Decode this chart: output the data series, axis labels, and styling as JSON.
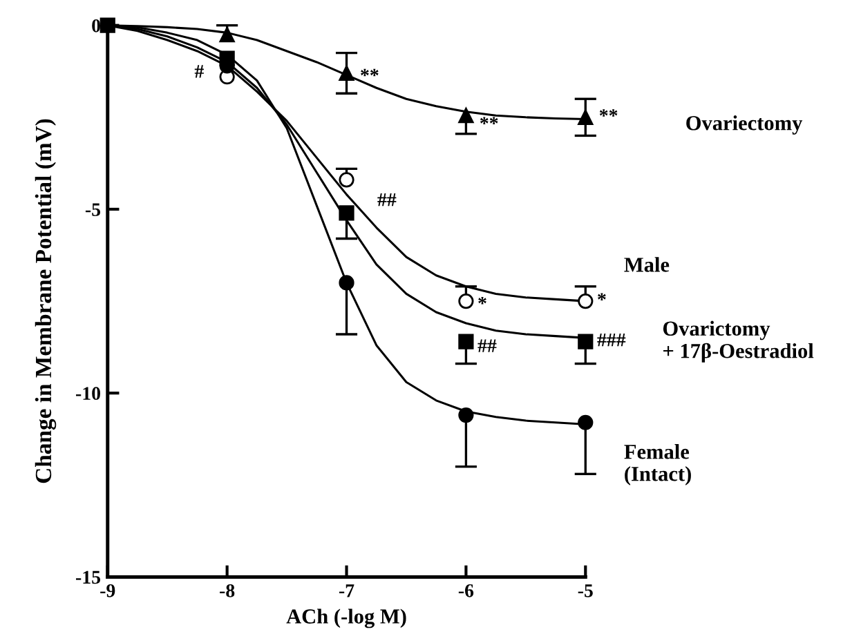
{
  "chart_data": {
    "type": "line",
    "xlabel": "ACh (-log M)",
    "ylabel": "Change in Membrane Potential (mV)",
    "xlim": [
      -9,
      -5
    ],
    "xticks": [
      -9,
      -8,
      -7,
      -6,
      -5
    ],
    "ylim": [
      -15,
      0
    ],
    "yticks": [
      0,
      -5,
      -10,
      -15
    ],
    "grid": false,
    "legend": false,
    "series": [
      {
        "color": "#000000",
        "marker": "none",
        "x": [
          -9,
          -8.75,
          -8.5,
          -8.25,
          -8,
          -7.75,
          -7.5,
          -7.25,
          -7,
          -6.75,
          -6.5,
          -6.25,
          -6,
          -5.75,
          -5.5,
          -5.25,
          -5
        ],
        "values": [
          0,
          -0.02,
          -0.05,
          -0.1,
          -0.2,
          -0.4,
          -0.7,
          -1.0,
          -1.35,
          -1.7,
          -2.0,
          -2.2,
          -2.35,
          -2.45,
          -2.5,
          -2.53,
          -2.55
        ]
      },
      {
        "color": "#000000",
        "marker": "none",
        "x": [
          -9,
          -8.75,
          -8.5,
          -8.25,
          -8,
          -7.75,
          -7.5,
          -7.25,
          -7,
          -6.75,
          -6.5,
          -6.25,
          -6,
          -5.75,
          -5.5,
          -5.25,
          -5
        ],
        "values": [
          0,
          -0.15,
          -0.4,
          -0.7,
          -1.1,
          -1.8,
          -2.6,
          -3.6,
          -4.6,
          -5.5,
          -6.3,
          -6.8,
          -7.1,
          -7.3,
          -7.4,
          -7.45,
          -7.5
        ]
      },
      {
        "color": "#000000",
        "marker": "none",
        "x": [
          -9,
          -8.75,
          -8.5,
          -8.25,
          -8,
          -7.75,
          -7.5,
          -7.25,
          -7,
          -6.75,
          -6.5,
          -6.25,
          -6,
          -5.75,
          -5.5,
          -5.25,
          -5
        ],
        "values": [
          0,
          -0.1,
          -0.3,
          -0.6,
          -1.0,
          -1.7,
          -2.7,
          -4.0,
          -5.3,
          -6.5,
          -7.3,
          -7.8,
          -8.1,
          -8.3,
          -8.4,
          -8.45,
          -8.5
        ]
      },
      {
        "color": "#000000",
        "marker": "none",
        "x": [
          -9,
          -8.75,
          -8.5,
          -8.25,
          -8,
          -7.75,
          -7.5,
          -7.25,
          -7,
          -6.75,
          -6.5,
          -6.25,
          -6,
          -5.75,
          -5.5,
          -5.25,
          -5
        ],
        "values": [
          0,
          -0.05,
          -0.2,
          -0.4,
          -0.8,
          -1.5,
          -2.8,
          -4.9,
          -7.0,
          -8.7,
          -9.7,
          -10.2,
          -10.5,
          -10.65,
          -10.75,
          -10.8,
          -10.85
        ]
      },
      {
        "type": "scatter",
        "name": "Ovariectomy",
        "color": "#000000",
        "marker": "triangle",
        "x": [
          -8,
          -7,
          -6,
          -5
        ],
        "values": [
          -0.25,
          -1.3,
          -2.45,
          -2.5
        ],
        "errors": [
          [
            -0.25,
            0
          ],
          [
            -1.85,
            -0.75
          ],
          [
            -2.95,
            -2.45
          ],
          [
            -3.0,
            -2.0
          ]
        ]
      },
      {
        "type": "scatter",
        "name": "Male",
        "color": "#ffffff",
        "marker": "circle",
        "x": [
          -8,
          -7,
          -6,
          -5
        ],
        "values": [
          -1.4,
          -4.2,
          -7.5,
          -7.5
        ],
        "errors": [
          null,
          [
            -4.2,
            -3.9
          ],
          [
            -7.5,
            -7.1
          ],
          [
            -7.5,
            -7.1
          ]
        ]
      },
      {
        "type": "scatter",
        "name": "Ovarictomy\n+ 17β-Oestradiol",
        "color": "#000000",
        "marker": "square",
        "x": [
          -9,
          -8,
          -7,
          -6,
          -5
        ],
        "values": [
          0,
          -0.9,
          -5.1,
          -8.6,
          -8.6
        ],
        "errors": [
          null,
          null,
          [
            -5.8,
            -5.1
          ],
          [
            -9.2,
            -8.6
          ],
          [
            -9.2,
            -8.6
          ]
        ]
      },
      {
        "type": "scatter",
        "name": "Female\n(Intact)",
        "color": "#000000",
        "marker": "circle",
        "x": [
          -8,
          -7,
          -6,
          -5
        ],
        "values": [
          -1.1,
          -7.0,
          -10.6,
          -10.8
        ],
        "errors": [
          null,
          [
            -8.4,
            -7.0
          ],
          [
            -12.0,
            -10.6
          ],
          [
            -12.2,
            -10.8
          ]
        ]
      }
    ],
    "annotations": [
      {
        "text": "#",
        "x": -8,
        "y": -1.4
      },
      {
        "text": "**",
        "x": -7,
        "y": -1.3
      },
      {
        "text": "**",
        "x": -6,
        "y": -2.45
      },
      {
        "text": "**",
        "x": -5,
        "y": -2.5
      },
      {
        "text": "##",
        "x": -7,
        "y": -5.1
      },
      {
        "text": "*",
        "x": -6,
        "y": -7.5
      },
      {
        "text": "*",
        "x": -5,
        "y": -7.5
      },
      {
        "text": "##",
        "x": -6,
        "y": -8.6
      },
      {
        "text": "###",
        "x": -5,
        "y": -8.6
      }
    ]
  }
}
